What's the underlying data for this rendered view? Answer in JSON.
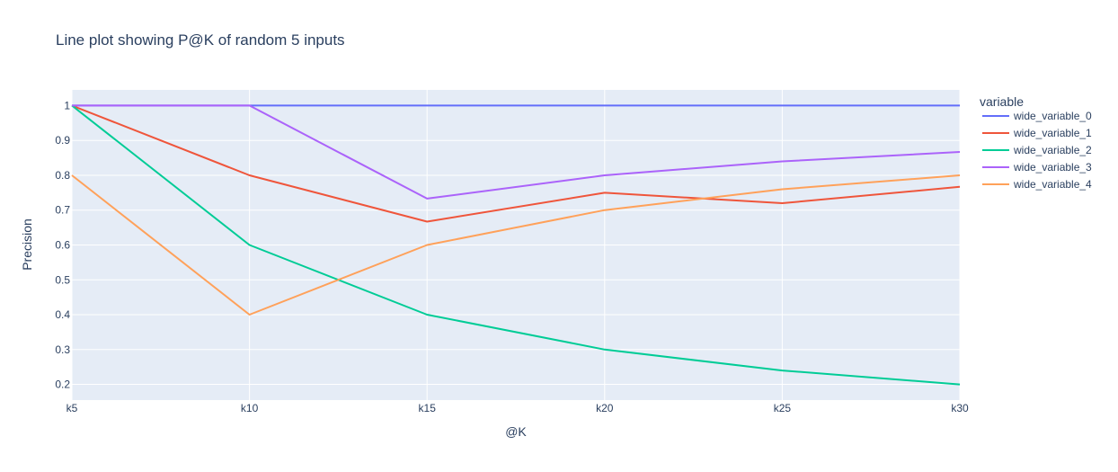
{
  "chart_data": {
    "type": "line",
    "title": "Line plot showing P@K of random 5 inputs",
    "xlabel": "@K",
    "ylabel": "Precision",
    "x": [
      "k5",
      "k10",
      "k15",
      "k20",
      "k25",
      "k30"
    ],
    "yticks": [
      "0.2",
      "0.3",
      "0.4",
      "0.5",
      "0.6",
      "0.7",
      "0.8",
      "0.9",
      "1"
    ],
    "ylim": [
      0.155,
      1.045
    ],
    "grid": true,
    "legend_title": "variable",
    "legend_position": "right",
    "series": [
      {
        "name": "wide_variable_0",
        "color": "#636efa",
        "values": [
          1,
          1,
          1,
          1,
          1,
          1
        ]
      },
      {
        "name": "wide_variable_1",
        "color": "#EF553B",
        "values": [
          1,
          0.8,
          0.667,
          0.75,
          0.72,
          0.767
        ]
      },
      {
        "name": "wide_variable_2",
        "color": "#00cc96",
        "values": [
          1,
          0.6,
          0.4,
          0.3,
          0.24,
          0.2
        ]
      },
      {
        "name": "wide_variable_3",
        "color": "#ab63fa",
        "values": [
          1,
          1,
          0.733,
          0.8,
          0.84,
          0.867
        ]
      },
      {
        "name": "wide_variable_4",
        "color": "#FFA15A",
        "values": [
          0.8,
          0.4,
          0.6,
          0.7,
          0.76,
          0.8
        ]
      }
    ]
  }
}
